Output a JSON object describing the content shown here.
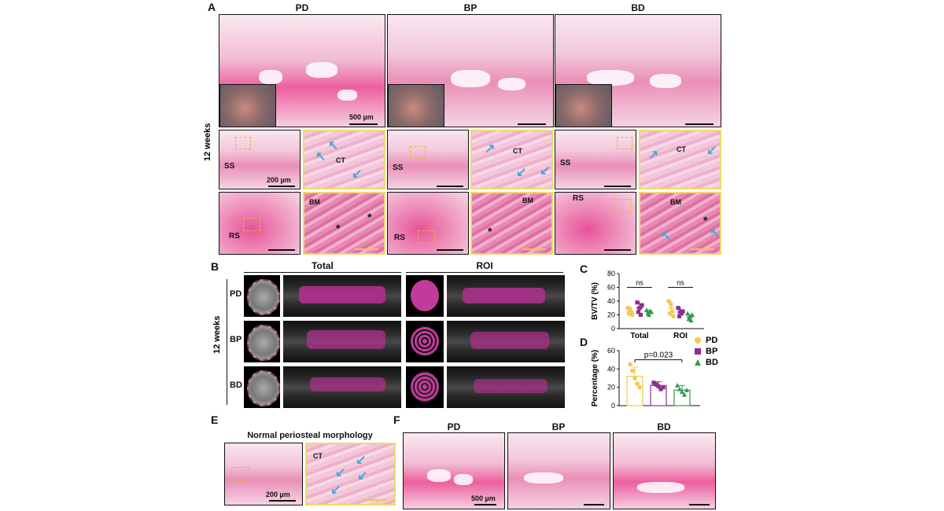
{
  "panel_letters": {
    "a": "A",
    "b": "B",
    "c": "C",
    "d": "D",
    "e": "E",
    "f": "F"
  },
  "panel_a": {
    "column_titles": [
      "PD",
      "BP",
      "BD"
    ],
    "side_label": "12 weeks",
    "scale_top": "500 µm",
    "scale_mid": "200 µm",
    "tissue_labels": {
      "ss": "SS",
      "rs": "RS",
      "ct": "CT",
      "bm": "BM",
      "star": "*"
    }
  },
  "panel_b": {
    "side_label": "12 weeks",
    "group_titles": [
      "Total",
      "ROI"
    ],
    "row_labels": [
      "PD",
      "BP",
      "BD"
    ]
  },
  "panel_c": {
    "chart_data": {
      "type": "scatter",
      "ylabel": "BV/TV (%)",
      "categories": [
        "Total",
        "ROI"
      ],
      "ylim": [
        0,
        80
      ],
      "yticks": [
        0,
        20,
        40,
        60,
        80
      ],
      "annotations": [
        "ns",
        "ns"
      ],
      "series": [
        {
          "name": "PD",
          "color": "#f2c94c",
          "marker": "circle",
          "values": [
            [
              30,
              22,
              28,
              24,
              20
            ],
            [
              40,
              22,
              35,
              25,
              18
            ]
          ],
          "mean": [
            25,
            30
          ],
          "sd": [
            8,
            12
          ]
        },
        {
          "name": "BP",
          "color": "#8e2d8e",
          "marker": "square",
          "values": [
            [
              38,
              24,
              30,
              20,
              34
            ],
            [
              30,
              18,
              24,
              22,
              25
            ]
          ],
          "mean": [
            30,
            24
          ],
          "sd": [
            9,
            7
          ]
        },
        {
          "name": "BD",
          "color": "#2e9b4a",
          "marker": "triangle",
          "values": [
            [
              27,
              22,
              20,
              25,
              24
            ],
            [
              22,
              14,
              18,
              12,
              20
            ]
          ],
          "mean": [
            24,
            17
          ],
          "sd": [
            4,
            5
          ]
        }
      ]
    }
  },
  "panel_d": {
    "chart_data": {
      "type": "bar",
      "ylabel": "Percentage (%)",
      "categories": [
        "PD",
        "BP",
        "BD"
      ],
      "ylim": [
        0,
        60
      ],
      "yticks": [
        0,
        20,
        40,
        60
      ],
      "annotation": "p=0.023",
      "series": [
        {
          "name": "PD",
          "color": "#f2c94c",
          "marker": "circle",
          "mean": 32,
          "sd": 10,
          "points": [
            45,
            38,
            30,
            24,
            20
          ]
        },
        {
          "name": "BP",
          "color": "#8e2d8e",
          "marker": "square",
          "mean": 22,
          "sd": 4,
          "points": [
            25,
            23,
            21,
            18,
            20
          ]
        },
        {
          "name": "BD",
          "color": "#2e9b4a",
          "marker": "triangle",
          "mean": 17,
          "sd": 5,
          "points": [
            22,
            18,
            15,
            12,
            17
          ]
        }
      ]
    }
  },
  "legend": [
    {
      "name": "PD",
      "color": "#f2c94c",
      "marker": "circle"
    },
    {
      "name": "BP",
      "color": "#8e2d8e",
      "marker": "square"
    },
    {
      "name": "BD",
      "color": "#2e9b4a",
      "marker": "triangle"
    }
  ],
  "panel_e": {
    "title": "Normal periosteal morphology",
    "scale": "200 µm",
    "ct": "CT"
  },
  "panel_f": {
    "column_titles": [
      "PD",
      "BP",
      "BD"
    ],
    "scale": "500 µm"
  }
}
